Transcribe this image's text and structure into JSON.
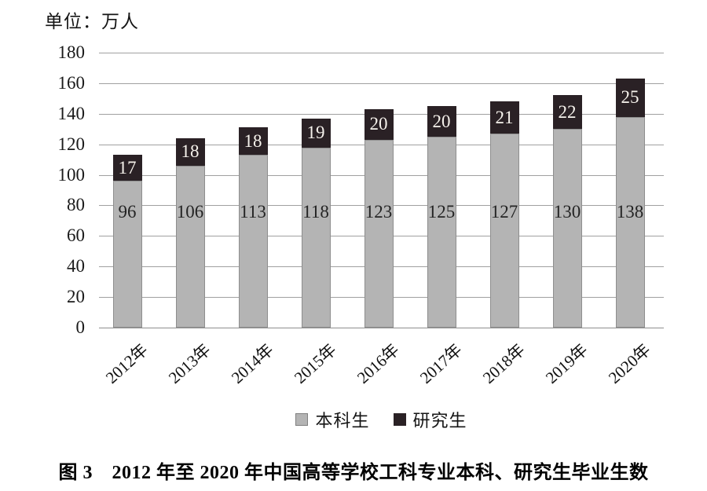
{
  "unit_label": "单位：万人",
  "caption": "图 3　2012 年至 2020 年中国高等学校工科专业本科、研究生毕业生数",
  "legend": [
    {
      "label": "本科生",
      "color": "#b4b4b4"
    },
    {
      "label": "研究生",
      "color": "#2a2125"
    }
  ],
  "colors": {
    "undergrad_bar": "#b4b4b4",
    "grad_bar": "#2a2125",
    "gridline": "#a0a0a0",
    "grad_label_text": "#f6f2ec"
  },
  "chart_data": {
    "type": "bar",
    "stacked": true,
    "title": "图 3　2012 年至 2020 年中国高等学校工科专业本科、研究生毕业生数",
    "unit": "单位：万人",
    "categories": [
      "2012年",
      "2013年",
      "2014年",
      "2015年",
      "2016年",
      "2017年",
      "2018年",
      "2019年",
      "2020年"
    ],
    "series": [
      {
        "name": "本科生",
        "values": [
          96,
          106,
          113,
          118,
          123,
          125,
          127,
          130,
          138
        ]
      },
      {
        "name": "研究生",
        "values": [
          17,
          18,
          18,
          19,
          20,
          20,
          21,
          22,
          25
        ]
      }
    ],
    "totals": [
      113,
      124,
      131,
      137,
      143,
      145,
      148,
      152,
      163
    ],
    "ylim": [
      0,
      180
    ],
    "yticks": [
      0,
      20,
      40,
      60,
      80,
      100,
      120,
      140,
      160,
      180
    ],
    "grid": true,
    "legend_position": "bottom"
  }
}
